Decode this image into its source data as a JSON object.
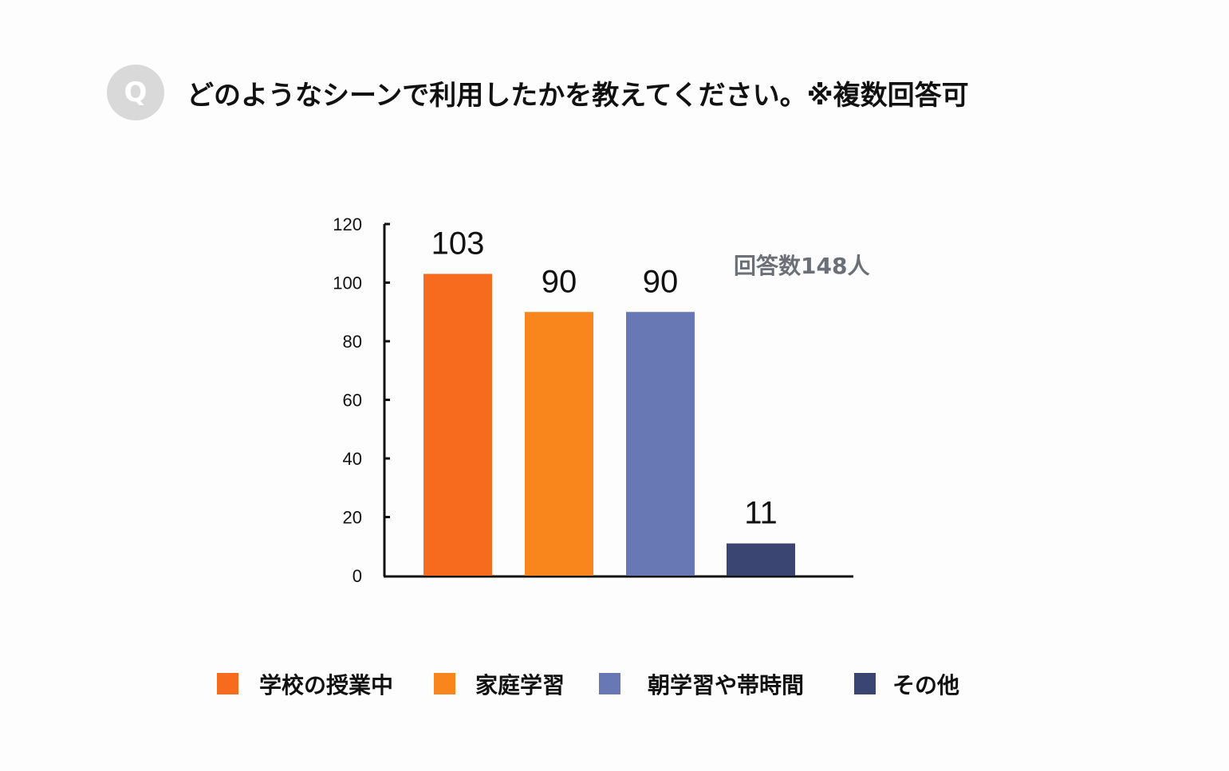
{
  "header": {
    "badge": "Q",
    "title": "どのようなシーンで利用したかを教えてください。※複数回答可"
  },
  "chart_data": {
    "type": "bar",
    "title": "",
    "xlabel": "",
    "ylabel": "",
    "ylim": [
      0,
      120
    ],
    "yticks": [
      0,
      20,
      40,
      60,
      80,
      100,
      120
    ],
    "categories": [
      "学校の授業中",
      "家庭学習",
      "朝学習や帯時間",
      "その他"
    ],
    "values": [
      103,
      90,
      90,
      11
    ],
    "colors": [
      "#f76b1f",
      "#f8861c",
      "#6878b4",
      "#3b4571"
    ],
    "grid": false,
    "legend": "bottom",
    "annotation": "回答数148人"
  }
}
